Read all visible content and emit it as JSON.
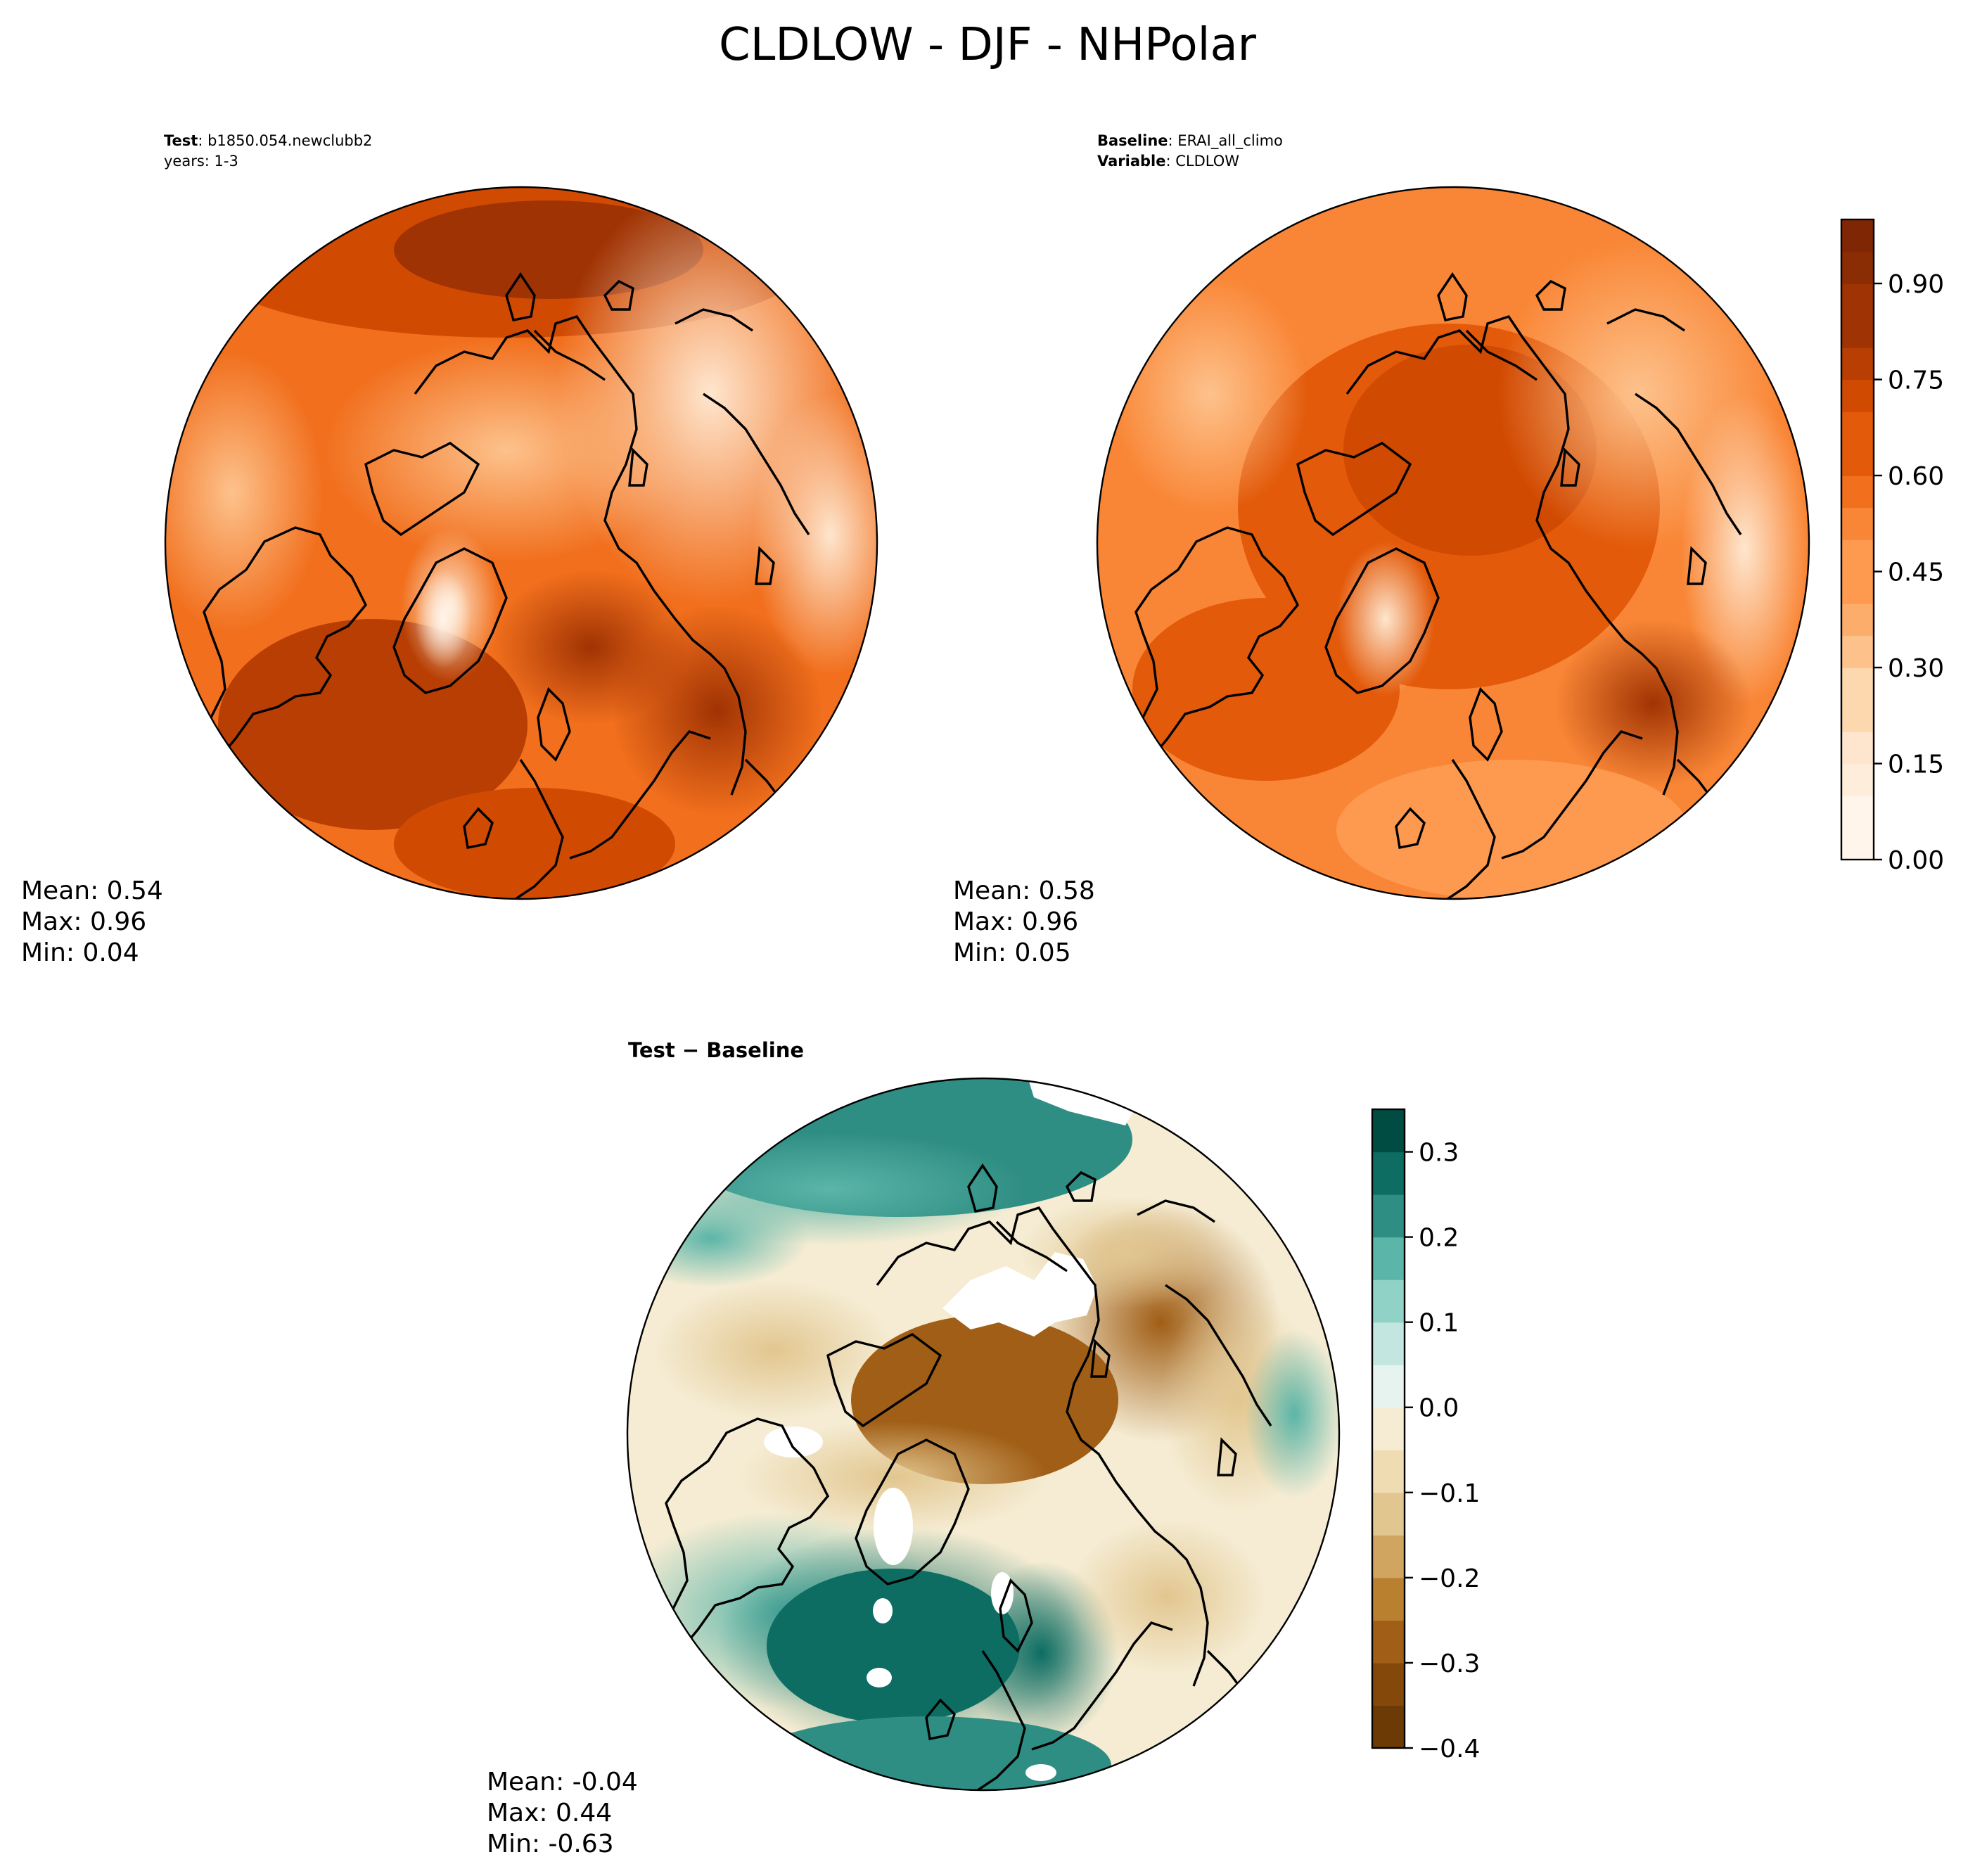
{
  "chart_data": {
    "type": "heatmap",
    "title": "CLDLOW - DJF - NHPolar",
    "panels": [
      {
        "id": "test",
        "meta_line1_label": "Test",
        "meta_line1_value": ": b1850.054.newclubb2",
        "meta_line2": "years: 1-3",
        "stats": {
          "mean": "Mean:  0.54",
          "max": "Max:  0.96",
          "min": "Min:  0.04"
        }
      },
      {
        "id": "baseline",
        "meta_line1_label": "Baseline",
        "meta_line1_value": ": ERAI_all_climo",
        "meta_line2_label": "Variable",
        "meta_line2_value": ": CLDLOW",
        "stats": {
          "mean": "Mean:  0.58",
          "max": "Max:  0.96",
          "min": "Min:  0.05"
        }
      },
      {
        "id": "diff",
        "subtitle": "Test − Baseline",
        "stats": {
          "mean": "Mean: -0.04",
          "max": "Max:  0.44",
          "min": "Min: -0.63"
        }
      }
    ],
    "colorbar_main": {
      "range": [
        0.0,
        1.0
      ],
      "ticks": [
        0.0,
        0.15,
        0.3,
        0.45,
        0.6,
        0.75,
        0.9
      ],
      "tick_labels": [
        "0.00",
        "0.15",
        "0.30",
        "0.45",
        "0.60",
        "0.75",
        "0.90"
      ],
      "levels": 20,
      "colors": [
        "#fff5eb",
        "#feedda",
        "#fee6ce",
        "#fdd7ae",
        "#fdc28c",
        "#fdad6b",
        "#fd9a50",
        "#f98636",
        "#f16f1d",
        "#e35a0a",
        "#d14a02",
        "#b83e03",
        "#a03303",
        "#8a2c04",
        "#7f2704"
      ]
    },
    "colorbar_diff": {
      "range": [
        -0.4,
        0.35
      ],
      "ticks": [
        -0.4,
        -0.3,
        -0.2,
        -0.1,
        0.0,
        0.1,
        0.2,
        0.3
      ],
      "tick_labels": [
        "−0.4",
        "−0.3",
        "−0.2",
        "−0.1",
        "0.0",
        "0.1",
        "0.2",
        "0.3"
      ],
      "levels": 15,
      "colors": [
        "#6b3a05",
        "#84480a",
        "#a05e16",
        "#b9802f",
        "#d0a55f",
        "#e2c68f",
        "#efdcb2",
        "#f5ecd3",
        "#e6f3ef",
        "#c3e7e0",
        "#90d3c6",
        "#5bb5a8",
        "#2f8e83",
        "#0d6d62",
        "#014c42"
      ]
    }
  }
}
